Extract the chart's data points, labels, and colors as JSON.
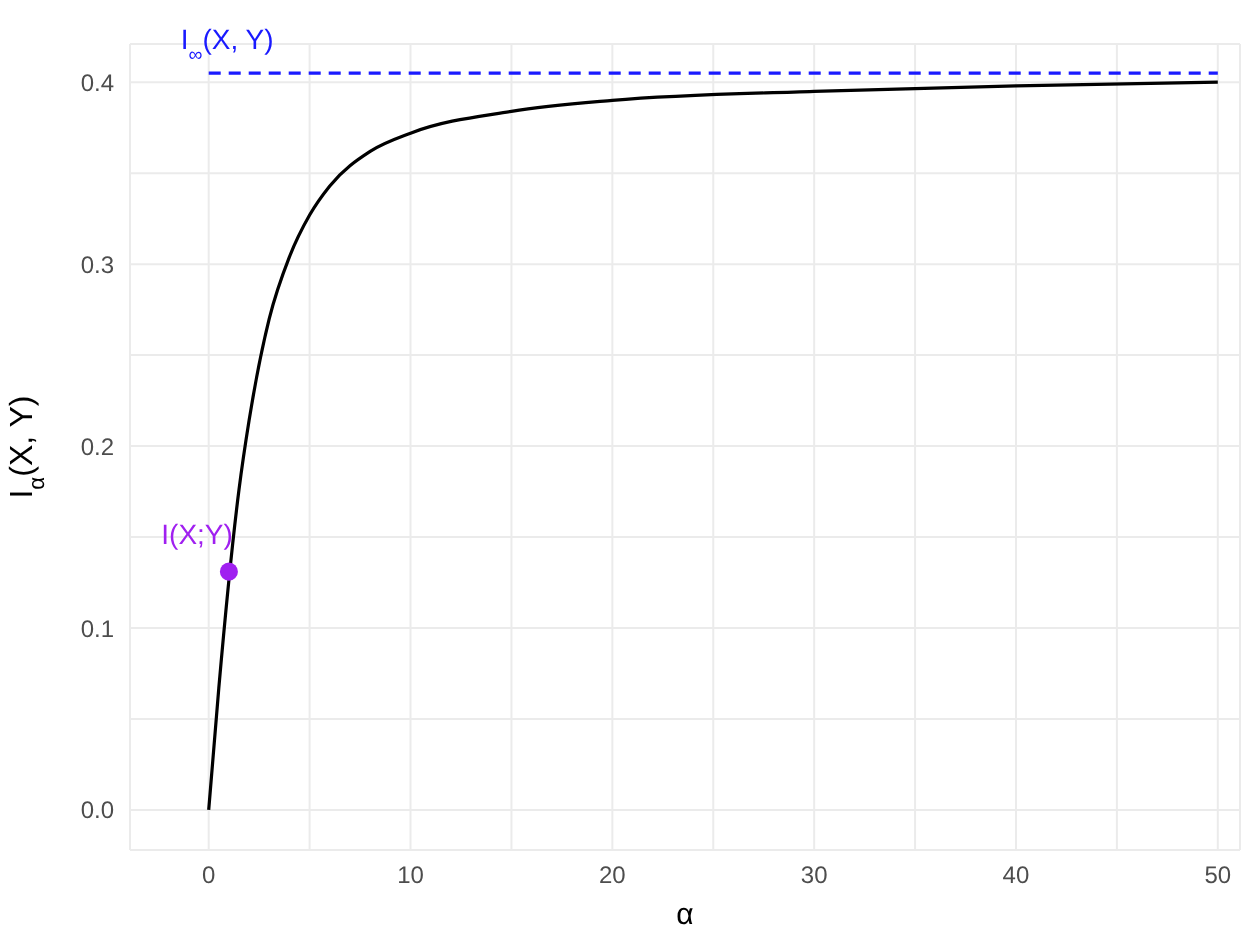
{
  "chart_data": {
    "type": "line",
    "xlabel": "α",
    "ylabel": "I$_{α}$(X, Y)",
    "xlim": [
      -3.9,
      51.1
    ],
    "ylim": [
      -0.022,
      0.421
    ],
    "xticks": [
      0,
      {
        "value": 5,
        "label": null
      },
      10,
      {
        "value": 15,
        "label": null
      },
      20,
      {
        "value": 25,
        "label": null
      },
      30,
      {
        "value": 35,
        "label": null
      },
      40,
      {
        "value": 45,
        "label": null
      },
      50
    ],
    "yticks": [
      {
        "value": 0,
        "label": "0.0"
      },
      {
        "value": 0.05,
        "label": null
      },
      0.1,
      {
        "value": 0.15,
        "label": null
      },
      0.2,
      {
        "value": 0.25,
        "label": null
      },
      0.3,
      {
        "value": 0.35,
        "label": null
      },
      0.4
    ],
    "grid": true,
    "series": [
      {
        "type": "line",
        "color": "#000000",
        "marker": "none",
        "line_style": "solid",
        "x": [
          0,
          0.5,
          1.5,
          2,
          3,
          4,
          5,
          6,
          8,
          10,
          15,
          20,
          30,
          40,
          50
        ],
        "values": [
          0,
          0.067,
          0.176,
          0.214,
          0.27,
          0.304,
          0.327,
          0.343,
          0.362,
          0.372,
          0.384,
          0.39,
          0.395,
          0.398,
          0.4
        ]
      },
      {
        "type": "line",
        "color": "#1a1aff",
        "marker": "none",
        "line_style": "dashed",
        "x": [
          0,
          50
        ],
        "values": [
          0.405,
          0.405
        ]
      },
      {
        "type": "scatter",
        "color": "#a020f0",
        "marker": "circle",
        "x": [
          1
        ],
        "values": [
          0.131
        ]
      }
    ],
    "annotations": [
      {
        "text": "I$_{∞}$(X, Y)",
        "x": 0,
        "y": 0.405
      },
      {
        "text": "I(X;Y)",
        "x": 1,
        "y": 0.131
      }
    ]
  }
}
